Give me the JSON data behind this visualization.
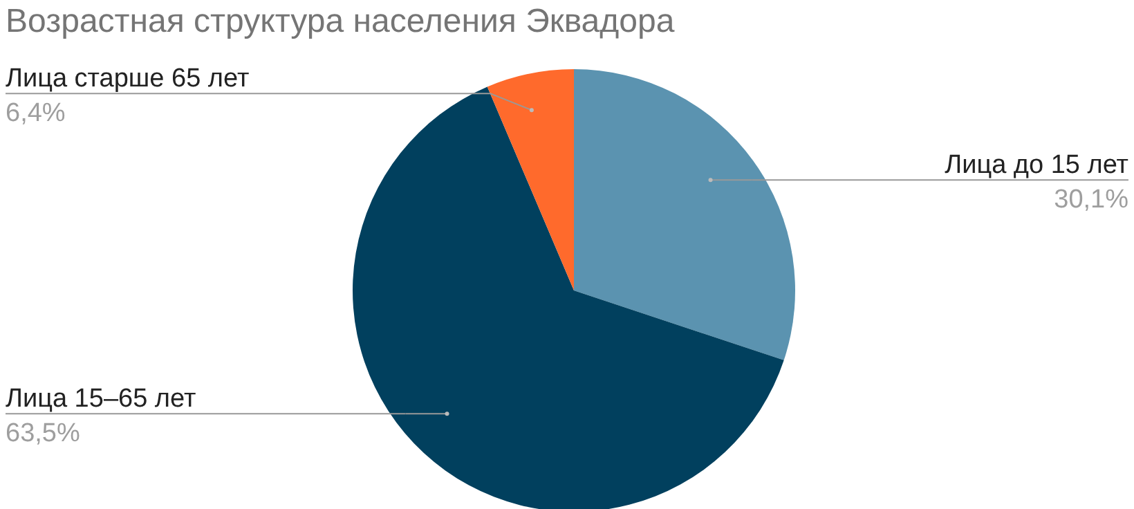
{
  "chart_data": {
    "type": "pie",
    "title": "Возрастная структура населения Эквадора",
    "categories": [
      "Лица до 15 лет",
      "Лица 15–65 лет",
      "Лица старше 65 лет"
    ],
    "values": [
      30.1,
      63.5,
      6.4
    ],
    "value_labels": [
      "30,1%",
      "63,5%",
      "6,4%"
    ],
    "colors": [
      "#5b93b0",
      "#01405e",
      "#ff6a2c"
    ],
    "legend": false
  }
}
